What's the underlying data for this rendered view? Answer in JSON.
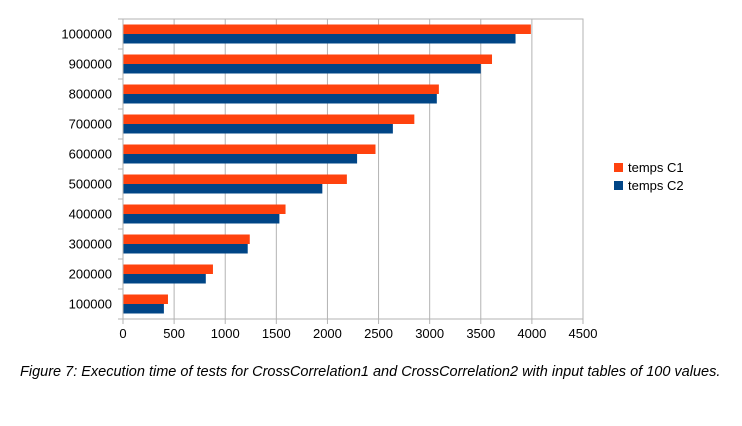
{
  "chart_data": {
    "type": "bar",
    "orientation": "horizontal",
    "categories": [
      "100000",
      "200000",
      "300000",
      "400000",
      "500000",
      "600000",
      "700000",
      "800000",
      "900000",
      "1000000"
    ],
    "series": [
      {
        "name": "temps C1",
        "color": "#ff420e",
        "values": [
          440,
          880,
          1240,
          1590,
          2190,
          2470,
          2850,
          3090,
          3610,
          3990
        ]
      },
      {
        "name": "temps C2",
        "color": "#004586",
        "values": [
          400,
          810,
          1220,
          1530,
          1950,
          2290,
          2640,
          3070,
          3500,
          3840
        ]
      }
    ],
    "xlim": [
      0,
      4500
    ],
    "xticks": [
      "0",
      "500",
      "1000",
      "1500",
      "2000",
      "2500",
      "3000",
      "3500",
      "4000",
      "4500"
    ],
    "grid": true,
    "legend": "right"
  },
  "caption": "Figure 7: Execution time of tests for CrossCorrelation1 and CrossCorrelation2 with input tables of 100 values."
}
